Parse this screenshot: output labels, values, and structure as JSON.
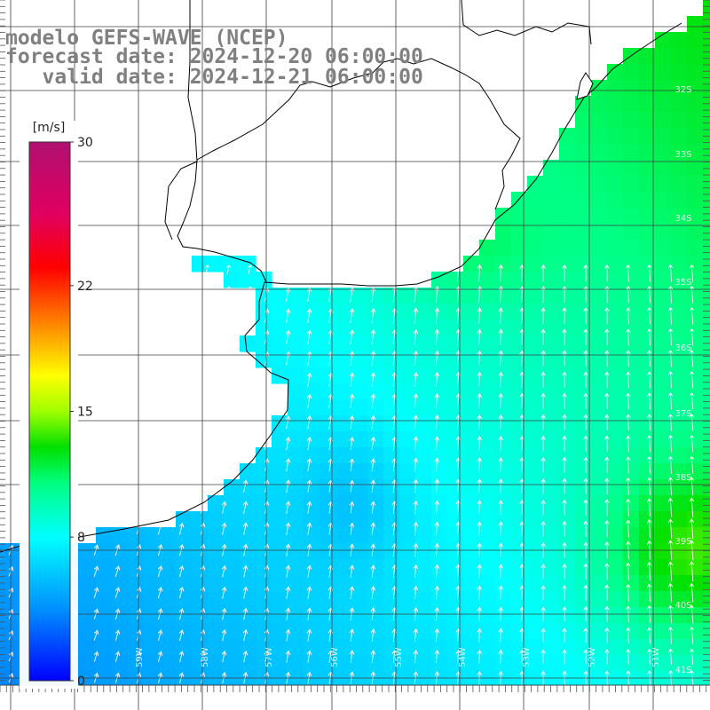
{
  "header": {
    "line1": "modelo GEFS-WAVE (NCEP)",
    "line2": "forecast date: 2024-12-20 06:00:00",
    "line3": "   valid date: 2024-12-21 06:00:00"
  },
  "colorbar": {
    "unit": "[m/s]",
    "min": 0,
    "max": 30,
    "ticks": [
      {
        "value": 0,
        "label": "0"
      },
      {
        "value": 8,
        "label": "8"
      },
      {
        "value": 15,
        "label": "15"
      },
      {
        "value": 22,
        "label": "22"
      },
      {
        "value": 30,
        "label": "30"
      }
    ],
    "stops": [
      {
        "value": 0,
        "color": "#0000ff"
      },
      {
        "value": 4,
        "color": "#0090ff"
      },
      {
        "value": 8,
        "color": "#00ffff"
      },
      {
        "value": 11,
        "color": "#00ff80"
      },
      {
        "value": 13,
        "color": "#00e000"
      },
      {
        "value": 15,
        "color": "#a0ff00"
      },
      {
        "value": 17,
        "color": "#ffff00"
      },
      {
        "value": 20,
        "color": "#ff8000"
      },
      {
        "value": 23,
        "color": "#ff0000"
      },
      {
        "value": 26,
        "color": "#e00060"
      },
      {
        "value": 30,
        "color": "#b01070"
      }
    ]
  },
  "map": {
    "lat_labels": [
      "32S",
      "33S",
      "34S",
      "35S",
      "36S",
      "37S",
      "38S",
      "39S",
      "40S",
      "41S"
    ],
    "lon_labels": [
      "59W",
      "58W",
      "57W",
      "56W",
      "55W",
      "54W",
      "53W",
      "52W",
      "51W"
    ],
    "wind_direction": "from southwest / south-southwest",
    "grid_color": "#404040",
    "coast_color": "#000000",
    "arrow_color": "#ffffff"
  }
}
